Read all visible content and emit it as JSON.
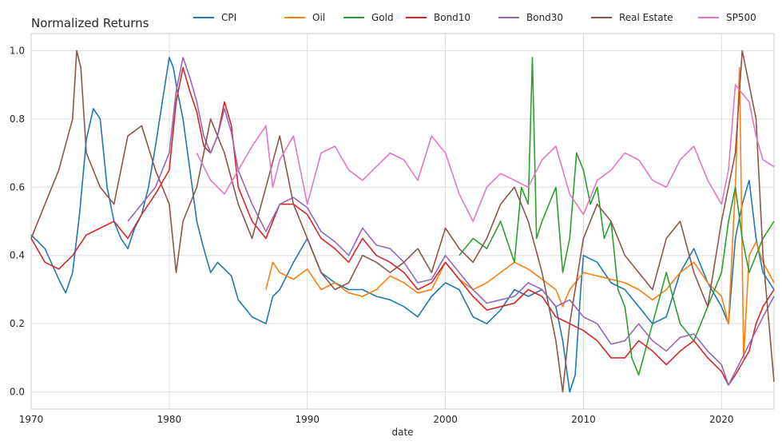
{
  "chart_data": {
    "type": "line",
    "title": "Normalized Returns",
    "xlabel": "date",
    "ylabel": "",
    "xlim": [
      1970,
      2023.8
    ],
    "ylim": [
      -0.05,
      1.05
    ],
    "x_ticks": [
      1970,
      1980,
      1990,
      2000,
      2010,
      2020
    ],
    "x_tick_labels": [
      "1970",
      "1980",
      "1990",
      "2000",
      "2010",
      "2020"
    ],
    "y_ticks": [
      0.0,
      0.2,
      0.4,
      0.6,
      0.8,
      1.0
    ],
    "y_tick_labels": [
      "0.0",
      "0.2",
      "0.4",
      "0.6",
      "0.8",
      "1.0"
    ],
    "grid": true,
    "legend_placement": "top",
    "series": [
      {
        "name": "CPI",
        "color": "#1f77b4",
        "x": [
          1970,
          1971,
          1972,
          1972.5,
          1973,
          1973.5,
          1974,
          1974.5,
          1975,
          1975.5,
          1976,
          1976.5,
          1977,
          1977.5,
          1978,
          1978.5,
          1979,
          1979.5,
          1980,
          1980.3,
          1980.6,
          1981,
          1981.5,
          1982,
          1982.5,
          1983,
          1983.5,
          1984,
          1984.5,
          1985,
          1986,
          1987,
          1987.5,
          1988,
          1989,
          1990,
          1991,
          1992,
          1993,
          1994,
          1995,
          1996,
          1997,
          1998,
          1999,
          2000,
          2001,
          2002,
          2003,
          2004,
          2005,
          2006,
          2007,
          2008,
          2008.5,
          2009,
          2009.4,
          2009.8,
          2010,
          2011,
          2012,
          2013,
          2014,
          2015,
          2016,
          2017,
          2018,
          2019,
          2020,
          2020.5,
          2021,
          2021.5,
          2022,
          2022.5,
          2023,
          2023.8
        ],
        "y": [
          0.46,
          0.42,
          0.33,
          0.29,
          0.35,
          0.52,
          0.74,
          0.83,
          0.8,
          0.6,
          0.5,
          0.45,
          0.42,
          0.48,
          0.52,
          0.6,
          0.72,
          0.85,
          0.98,
          0.95,
          0.88,
          0.8,
          0.65,
          0.5,
          0.42,
          0.35,
          0.38,
          0.36,
          0.34,
          0.27,
          0.22,
          0.2,
          0.28,
          0.3,
          0.38,
          0.45,
          0.35,
          0.32,
          0.3,
          0.3,
          0.28,
          0.27,
          0.25,
          0.22,
          0.28,
          0.32,
          0.3,
          0.22,
          0.2,
          0.24,
          0.3,
          0.28,
          0.3,
          0.25,
          0.15,
          0.0,
          0.05,
          0.3,
          0.4,
          0.38,
          0.32,
          0.3,
          0.25,
          0.2,
          0.22,
          0.35,
          0.42,
          0.32,
          0.25,
          0.2,
          0.45,
          0.55,
          0.62,
          0.45,
          0.35,
          0.3
        ]
      },
      {
        "name": "Oil",
        "color": "#ff7f0e",
        "x": [
          1987,
          1987.5,
          1988,
          1989,
          1990,
          1991,
          1992,
          1993,
          1994,
          1995,
          1996,
          1997,
          1998,
          1999,
          2000,
          2001,
          2002,
          2003,
          2004,
          2005,
          2006,
          2007,
          2008,
          2008.5,
          2009,
          2010,
          2011,
          2012,
          2013,
          2014,
          2015,
          2016,
          2017,
          2018,
          2019,
          2020,
          2020.5,
          2021,
          2021.3,
          2021.6,
          2022,
          2022.5,
          2023,
          2023.8
        ],
        "y": [
          0.3,
          0.38,
          0.35,
          0.33,
          0.36,
          0.3,
          0.32,
          0.29,
          0.28,
          0.3,
          0.34,
          0.32,
          0.29,
          0.3,
          0.38,
          0.33,
          0.3,
          0.32,
          0.35,
          0.38,
          0.36,
          0.33,
          0.3,
          0.25,
          0.3,
          0.35,
          0.34,
          0.33,
          0.32,
          0.3,
          0.27,
          0.3,
          0.35,
          0.38,
          0.32,
          0.28,
          0.2,
          0.6,
          0.95,
          0.1,
          0.4,
          0.44,
          0.38,
          0.32
        ]
      },
      {
        "name": "Gold",
        "color": "#2ca02c",
        "x": [
          2001,
          2002,
          2003,
          2004,
          2005,
          2005.5,
          2006,
          2006.3,
          2006.6,
          2007,
          2008,
          2008.5,
          2009,
          2009.5,
          2010,
          2010.5,
          2011,
          2011.5,
          2012,
          2012.5,
          2013,
          2013.5,
          2014,
          2015,
          2016,
          2017,
          2018,
          2019,
          2020,
          2020.5,
          2021,
          2021.5,
          2022,
          2022.5,
          2023,
          2023.8
        ],
        "y": [
          0.4,
          0.45,
          0.42,
          0.5,
          0.38,
          0.6,
          0.55,
          0.98,
          0.45,
          0.5,
          0.6,
          0.35,
          0.45,
          0.7,
          0.65,
          0.55,
          0.6,
          0.45,
          0.5,
          0.3,
          0.25,
          0.1,
          0.05,
          0.2,
          0.35,
          0.2,
          0.15,
          0.25,
          0.35,
          0.5,
          0.6,
          0.45,
          0.35,
          0.4,
          0.45,
          0.5
        ]
      },
      {
        "name": "Bond10",
        "color": "#d62728",
        "x": [
          1970,
          1971,
          1972,
          1973,
          1974,
          1975,
          1976,
          1977,
          1978,
          1979,
          1980,
          1980.5,
          1981,
          1981.5,
          1982,
          1982.5,
          1983,
          1983.5,
          1984,
          1984.5,
          1985,
          1986,
          1987,
          1988,
          1989,
          1990,
          1991,
          1992,
          1993,
          1994,
          1995,
          1996,
          1997,
          1998,
          1999,
          2000,
          2001,
          2002,
          2003,
          2004,
          2005,
          2006,
          2007,
          2008,
          2009,
          2010,
          2011,
          2012,
          2013,
          2014,
          2015,
          2016,
          2017,
          2018,
          2019,
          2020,
          2020.5,
          2021,
          2022,
          2022.5,
          2023,
          2023.8
        ],
        "y": [
          0.45,
          0.38,
          0.36,
          0.4,
          0.46,
          0.48,
          0.5,
          0.45,
          0.52,
          0.58,
          0.65,
          0.85,
          0.95,
          0.88,
          0.82,
          0.72,
          0.7,
          0.75,
          0.85,
          0.78,
          0.6,
          0.5,
          0.45,
          0.55,
          0.55,
          0.52,
          0.45,
          0.42,
          0.38,
          0.45,
          0.4,
          0.38,
          0.35,
          0.3,
          0.32,
          0.38,
          0.33,
          0.28,
          0.24,
          0.25,
          0.26,
          0.3,
          0.28,
          0.22,
          0.2,
          0.18,
          0.15,
          0.1,
          0.1,
          0.15,
          0.12,
          0.08,
          0.12,
          0.15,
          0.1,
          0.06,
          0.02,
          0.05,
          0.12,
          0.2,
          0.25,
          0.3
        ]
      },
      {
        "name": "Bond30",
        "color": "#9467bd",
        "x": [
          1977,
          1978,
          1979,
          1980,
          1980.5,
          1981,
          1981.5,
          1982,
          1982.5,
          1983,
          1983.5,
          1984,
          1984.5,
          1985,
          1986,
          1987,
          1988,
          1989,
          1990,
          1991,
          1992,
          1993,
          1994,
          1995,
          1996,
          1997,
          1998,
          1999,
          2000,
          2001,
          2002,
          2003,
          2004,
          2005,
          2006,
          2007,
          2008,
          2009,
          2010,
          2011,
          2012,
          2013,
          2014,
          2015,
          2016,
          2017,
          2018,
          2019,
          2020,
          2020.5,
          2021,
          2022,
          2023,
          2023.8
        ],
        "y": [
          0.5,
          0.55,
          0.6,
          0.7,
          0.88,
          0.98,
          0.92,
          0.85,
          0.75,
          0.7,
          0.75,
          0.83,
          0.76,
          0.65,
          0.55,
          0.47,
          0.55,
          0.57,
          0.54,
          0.47,
          0.44,
          0.4,
          0.48,
          0.43,
          0.42,
          0.38,
          0.32,
          0.33,
          0.4,
          0.35,
          0.3,
          0.26,
          0.27,
          0.28,
          0.32,
          0.3,
          0.25,
          0.27,
          0.22,
          0.2,
          0.14,
          0.15,
          0.2,
          0.15,
          0.12,
          0.16,
          0.17,
          0.12,
          0.08,
          0.02,
          0.06,
          0.14,
          0.22,
          0.28
        ]
      },
      {
        "name": "Real Estate",
        "color": "#8c564b",
        "x": [
          1970,
          1971,
          1972,
          1973,
          1973.3,
          1973.6,
          1974,
          1975,
          1976,
          1977,
          1978,
          1979,
          1980,
          1980.5,
          1981,
          1982,
          1983,
          1984,
          1985,
          1986,
          1987,
          1988,
          1989,
          1990,
          1991,
          1992,
          1993,
          1994,
          1995,
          1996,
          1997,
          1998,
          1999,
          2000,
          2001,
          2002,
          2003,
          2004,
          2005,
          2006,
          2007,
          2008,
          2008.5,
          2009,
          2010,
          2011,
          2012,
          2013,
          2014,
          2015,
          2016,
          2017,
          2018,
          2019,
          2020,
          2021,
          2021.5,
          2022,
          2022.5,
          2023,
          2023.8
        ],
        "y": [
          0.45,
          0.55,
          0.65,
          0.8,
          1.0,
          0.95,
          0.7,
          0.6,
          0.55,
          0.75,
          0.78,
          0.65,
          0.55,
          0.35,
          0.5,
          0.6,
          0.8,
          0.7,
          0.55,
          0.45,
          0.6,
          0.75,
          0.55,
          0.45,
          0.35,
          0.3,
          0.32,
          0.4,
          0.38,
          0.35,
          0.38,
          0.42,
          0.35,
          0.48,
          0.42,
          0.38,
          0.45,
          0.55,
          0.6,
          0.5,
          0.35,
          0.15,
          0.0,
          0.2,
          0.45,
          0.55,
          0.5,
          0.4,
          0.35,
          0.3,
          0.45,
          0.5,
          0.35,
          0.25,
          0.5,
          0.7,
          1.0,
          0.9,
          0.8,
          0.4,
          0.03
        ]
      },
      {
        "name": "SP500",
        "color": "#e377c2",
        "x": [
          1982,
          1983,
          1984,
          1985,
          1986,
          1987,
          1987.5,
          1988,
          1989,
          1990,
          1991,
          1992,
          1993,
          1994,
          1995,
          1996,
          1997,
          1998,
          1999,
          2000,
          2001,
          2002,
          2003,
          2004,
          2005,
          2006,
          2007,
          2008,
          2009,
          2010,
          2011,
          2012,
          2013,
          2014,
          2015,
          2016,
          2017,
          2018,
          2019,
          2020,
          2020.5,
          2021,
          2022,
          2022.5,
          2023,
          2023.8
        ],
        "y": [
          0.7,
          0.62,
          0.58,
          0.65,
          0.72,
          0.78,
          0.6,
          0.68,
          0.75,
          0.55,
          0.7,
          0.72,
          0.65,
          0.62,
          0.66,
          0.7,
          0.68,
          0.62,
          0.75,
          0.7,
          0.58,
          0.5,
          0.6,
          0.64,
          0.62,
          0.6,
          0.68,
          0.72,
          0.58,
          0.52,
          0.62,
          0.65,
          0.7,
          0.68,
          0.62,
          0.6,
          0.68,
          0.72,
          0.62,
          0.55,
          0.65,
          0.9,
          0.85,
          0.75,
          0.68,
          0.66
        ]
      }
    ]
  }
}
